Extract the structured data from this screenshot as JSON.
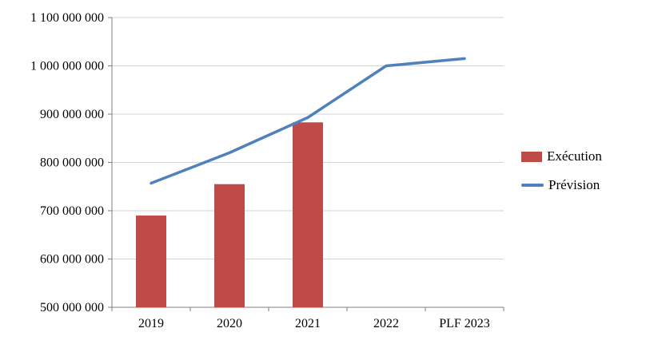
{
  "chart_data": {
    "type": "bar",
    "subtype": "combo-bar-line",
    "categories": [
      "2019",
      "2020",
      "2021",
      "2022",
      "PLF 2023"
    ],
    "series": [
      {
        "name": "Exécution",
        "type": "bar",
        "color": "#BE4B48",
        "values": [
          690000000,
          755000000,
          883000000,
          null,
          null
        ]
      },
      {
        "name": "Prévision",
        "type": "line",
        "color": "#4F81BD",
        "values": [
          757000000,
          820000000,
          893000000,
          1000000000,
          1015000000
        ]
      }
    ],
    "title": "",
    "xlabel": "",
    "ylabel": "",
    "ylim": [
      500000000,
      1100000000
    ],
    "ytick_step": 100000000,
    "ytick_labels": [
      "500 000 000",
      "600 000 000",
      "700 000 000",
      "800 000 000",
      "900 000 000",
      "1 000 000 000",
      "1 100 000 000"
    ],
    "grid": true,
    "gridline_color": "#D3D3D3",
    "axis_color": "#7F7F7F",
    "text_color": "#000000",
    "legend_position": "right"
  },
  "legend": {
    "items": [
      {
        "label": "Exécution"
      },
      {
        "label": "Prévision"
      }
    ]
  }
}
